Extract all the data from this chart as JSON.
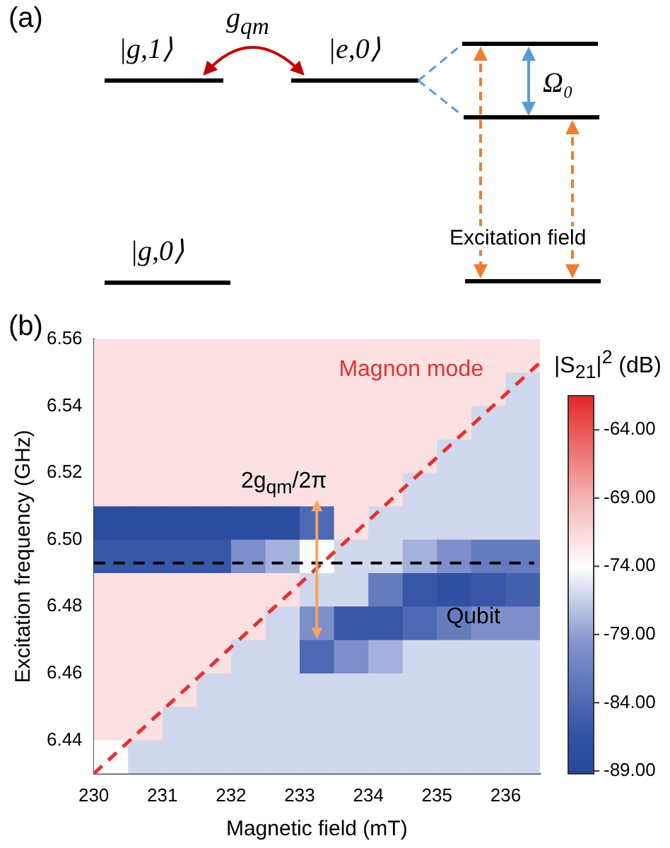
{
  "chart_data": [
    {
      "type": "other",
      "title": "(a)",
      "annotations": [
        "|g,1⟩",
        "g$_{qm}$",
        "|e,0⟩",
        "Ω₀",
        "Excitation field",
        "|g,0⟩"
      ]
    },
    {
      "type": "heatmap",
      "title": "(b)",
      "xlabel": "Magnetic field (mT)",
      "ylabel": "Excitation frequency (GHz)",
      "clabel": "|S$_{21}$|$^{2}$ (dB)",
      "x": [
        230.25,
        230.75,
        231.25,
        231.75,
        232.25,
        232.75,
        233.25,
        233.75,
        234.25,
        234.75,
        235.25,
        235.75,
        236.25
      ],
      "y": [
        6.555,
        6.545,
        6.535,
        6.525,
        6.515,
        6.505,
        6.495,
        6.485,
        6.475,
        6.465,
        6.455,
        6.445,
        6.435
      ],
      "cells": [
        [
          -72,
          -72,
          -72,
          -72,
          -72,
          -72,
          -72,
          -72,
          -72,
          -72,
          -72,
          -72,
          -72
        ],
        [
          -72,
          -72,
          -72,
          -72,
          -72,
          -72,
          -72,
          -72,
          -72,
          -72,
          -72,
          -72,
          -76
        ],
        [
          -72,
          -72,
          -72,
          -72,
          -72,
          -72,
          -72,
          -72,
          -72,
          -72,
          -72,
          -76,
          -76
        ],
        [
          -72,
          -72,
          -72,
          -72,
          -72,
          -72,
          -72,
          -72,
          -72,
          -72,
          -76,
          -76,
          -76
        ],
        [
          -72,
          -72,
          -72,
          -72,
          -72,
          -72,
          -72,
          -72,
          -72,
          -76,
          -76,
          -76,
          -76
        ],
        [
          -88,
          -88,
          -88,
          -88,
          -88,
          -88,
          -84,
          -72,
          -76,
          -76,
          -76,
          -76,
          -76
        ],
        [
          -86,
          -86,
          -86,
          -86,
          -80,
          -78,
          -74,
          -76,
          -76,
          -78,
          -80,
          -82,
          -82
        ],
        [
          -72,
          -72,
          -72,
          -72,
          -72,
          -72,
          -76,
          -76,
          -82,
          -86,
          -87,
          -86,
          -85
        ],
        [
          -72,
          -72,
          -72,
          -72,
          -72,
          -76,
          -80,
          -86,
          -86,
          -84,
          -82,
          -80,
          -80
        ],
        [
          -72,
          -72,
          -72,
          -72,
          -76,
          -76,
          -84,
          -80,
          -78,
          -76,
          -76,
          -76,
          -76
        ],
        [
          -72,
          -72,
          -72,
          -76,
          -76,
          -76,
          -76,
          -76,
          -76,
          -76,
          -76,
          -76,
          -76
        ],
        [
          -72,
          -72,
          -76,
          -76,
          -76,
          -76,
          -76,
          -76,
          -76,
          -76,
          -76,
          -76,
          -76
        ],
        [
          -74,
          -76,
          -76,
          -76,
          -76,
          -76,
          -76,
          -76,
          -76,
          -76,
          -76,
          -76,
          -76
        ]
      ],
      "xlim": [
        230,
        236.5
      ],
      "xticks": [
        230,
        231,
        232,
        233,
        234,
        235,
        236
      ],
      "ylim": [
        6.43,
        6.56
      ],
      "yticks": [
        6.44,
        6.46,
        6.48,
        {
          "value": 6.5,
          "label": "6.50"
        },
        6.52,
        6.54,
        6.56
      ],
      "clim": [
        -89.2,
        -61.5
      ],
      "cticks": [
        {
          "value": -64,
          "label": "-64.00"
        },
        {
          "value": -69,
          "label": "-69.00"
        },
        {
          "value": -74,
          "label": "-74.00"
        },
        {
          "value": -79,
          "label": "-79.00"
        },
        {
          "value": -84,
          "label": "-84.00"
        },
        {
          "value": -89,
          "label": "-89.00"
        }
      ],
      "series": [
        {
          "type": "line",
          "name": "Magnon mode",
          "color": "#e8302f",
          "line_style": "dashed",
          "x": [
            230,
            236.5
          ],
          "values": [
            6.43,
            6.553
          ]
        }
      ],
      "ref_lines": [
        {
          "axis": "y",
          "value": 6.493,
          "color": "#000000",
          "line_style": "dashed"
        }
      ],
      "annotations": [
        "2g$_{qm}$/2π",
        "Qubit"
      ],
      "grid": false,
      "legend": false
    }
  ]
}
